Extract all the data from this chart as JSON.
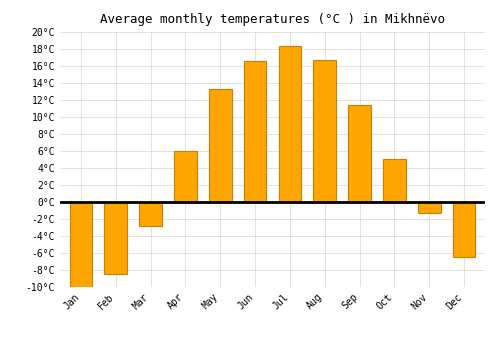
{
  "title": "Average monthly temperatures (°C ) in Mikhnëvo",
  "months": [
    "Jan",
    "Feb",
    "Mar",
    "Apr",
    "May",
    "Jun",
    "Jul",
    "Aug",
    "Sep",
    "Oct",
    "Nov",
    "Dec"
  ],
  "values": [
    -10,
    -8.5,
    -2.8,
    6,
    13.3,
    16.5,
    18.3,
    16.7,
    11.4,
    5,
    -1.3,
    -6.5
  ],
  "bar_color": "#FFA500",
  "bar_edge_color": "#CC8000",
  "background_color": "#FFFFFF",
  "grid_color": "#DDDDDD",
  "ylim": [
    -10,
    20
  ],
  "yticks": [
    -10,
    -8,
    -6,
    -4,
    -2,
    0,
    2,
    4,
    6,
    8,
    10,
    12,
    14,
    16,
    18,
    20
  ],
  "ytick_labels": [
    "-10°C",
    "-8°C",
    "-6°C",
    "-4°C",
    "-2°C",
    "0°C",
    "2°C",
    "4°C",
    "6°C",
    "8°C",
    "10°C",
    "12°C",
    "14°C",
    "16°C",
    "18°C",
    "20°C"
  ],
  "title_fontsize": 9,
  "tick_fontsize": 7,
  "font_family": "monospace",
  "bar_width": 0.65
}
